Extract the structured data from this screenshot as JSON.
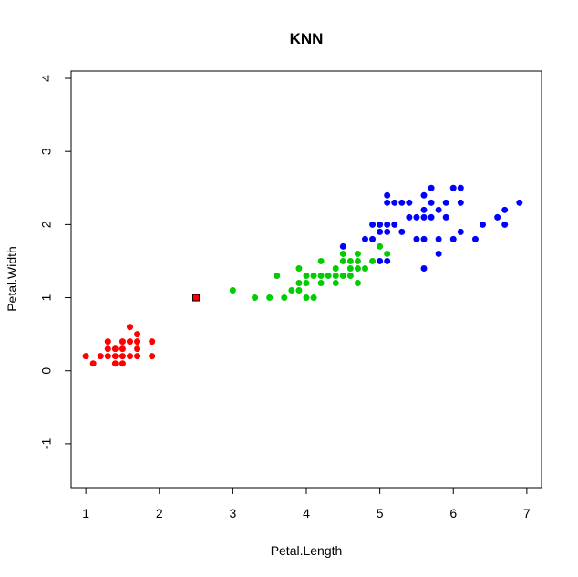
{
  "chart_data": {
    "type": "scatter",
    "title": "KNN",
    "xlabel": "Petal.Length",
    "ylabel": "Petal.Width",
    "xlim": [
      0.8,
      7.2
    ],
    "ylim": [
      -1.6,
      4.1
    ],
    "xticks": [
      "1",
      "2",
      "3",
      "4",
      "5",
      "6",
      "7"
    ],
    "yticks": [
      "-1",
      "0",
      "1",
      "2",
      "3",
      "4"
    ],
    "grid": false,
    "series": [
      {
        "color": "#ff0000",
        "marker": "circle",
        "points": [
          [
            1.0,
            0.2
          ],
          [
            1.1,
            0.1
          ],
          [
            1.2,
            0.2
          ],
          [
            1.3,
            0.2
          ],
          [
            1.3,
            0.3
          ],
          [
            1.3,
            0.4
          ],
          [
            1.4,
            0.1
          ],
          [
            1.4,
            0.2
          ],
          [
            1.4,
            0.3
          ],
          [
            1.5,
            0.1
          ],
          [
            1.5,
            0.2
          ],
          [
            1.5,
            0.3
          ],
          [
            1.5,
            0.4
          ],
          [
            1.6,
            0.2
          ],
          [
            1.6,
            0.4
          ],
          [
            1.6,
            0.6
          ],
          [
            1.7,
            0.2
          ],
          [
            1.7,
            0.3
          ],
          [
            1.7,
            0.4
          ],
          [
            1.7,
            0.5
          ],
          [
            1.9,
            0.2
          ],
          [
            1.9,
            0.4
          ]
        ]
      },
      {
        "color": "#00cd00",
        "marker": "circle",
        "points": [
          [
            3.0,
            1.1
          ],
          [
            3.3,
            1.0
          ],
          [
            3.5,
            1.0
          ],
          [
            3.6,
            1.3
          ],
          [
            3.7,
            1.0
          ],
          [
            3.8,
            1.1
          ],
          [
            3.9,
            1.1
          ],
          [
            3.9,
            1.2
          ],
          [
            3.9,
            1.4
          ],
          [
            4.0,
            1.0
          ],
          [
            4.0,
            1.2
          ],
          [
            4.0,
            1.3
          ],
          [
            4.1,
            1.0
          ],
          [
            4.1,
            1.3
          ],
          [
            4.2,
            1.2
          ],
          [
            4.2,
            1.3
          ],
          [
            4.2,
            1.5
          ],
          [
            4.3,
            1.3
          ],
          [
            4.4,
            1.2
          ],
          [
            4.4,
            1.3
          ],
          [
            4.4,
            1.4
          ],
          [
            4.5,
            1.3
          ],
          [
            4.5,
            1.5
          ],
          [
            4.5,
            1.6
          ],
          [
            4.6,
            1.3
          ],
          [
            4.6,
            1.4
          ],
          [
            4.6,
            1.5
          ],
          [
            4.7,
            1.2
          ],
          [
            4.7,
            1.4
          ],
          [
            4.7,
            1.5
          ],
          [
            4.7,
            1.6
          ],
          [
            4.8,
            1.4
          ],
          [
            4.9,
            1.5
          ],
          [
            5.0,
            1.7
          ],
          [
            5.1,
            1.6
          ]
        ]
      },
      {
        "color": "#0000ff",
        "marker": "circle",
        "points": [
          [
            4.5,
            1.7
          ],
          [
            4.8,
            1.8
          ],
          [
            4.9,
            1.8
          ],
          [
            4.9,
            2.0
          ],
          [
            5.0,
            1.5
          ],
          [
            5.0,
            1.9
          ],
          [
            5.0,
            2.0
          ],
          [
            5.1,
            1.5
          ],
          [
            5.1,
            1.9
          ],
          [
            5.1,
            2.0
          ],
          [
            5.1,
            2.3
          ],
          [
            5.1,
            2.4
          ],
          [
            5.2,
            2.0
          ],
          [
            5.2,
            2.3
          ],
          [
            5.3,
            1.9
          ],
          [
            5.3,
            2.3
          ],
          [
            5.4,
            2.1
          ],
          [
            5.4,
            2.3
          ],
          [
            5.5,
            1.8
          ],
          [
            5.5,
            2.1
          ],
          [
            5.6,
            1.4
          ],
          [
            5.6,
            1.8
          ],
          [
            5.6,
            2.1
          ],
          [
            5.6,
            2.2
          ],
          [
            5.6,
            2.4
          ],
          [
            5.7,
            2.1
          ],
          [
            5.7,
            2.3
          ],
          [
            5.7,
            2.5
          ],
          [
            5.8,
            1.6
          ],
          [
            5.8,
            1.8
          ],
          [
            5.8,
            2.2
          ],
          [
            5.9,
            2.1
          ],
          [
            5.9,
            2.3
          ],
          [
            6.0,
            1.8
          ],
          [
            6.0,
            2.5
          ],
          [
            6.1,
            1.9
          ],
          [
            6.1,
            2.3
          ],
          [
            6.1,
            2.5
          ],
          [
            6.3,
            1.8
          ],
          [
            6.4,
            2.0
          ],
          [
            6.6,
            2.1
          ],
          [
            6.7,
            2.0
          ],
          [
            6.7,
            2.2
          ],
          [
            6.9,
            2.3
          ]
        ]
      },
      {
        "color": "#ff0000",
        "marker": "square",
        "points": [
          [
            2.5,
            1.0
          ]
        ]
      }
    ]
  }
}
